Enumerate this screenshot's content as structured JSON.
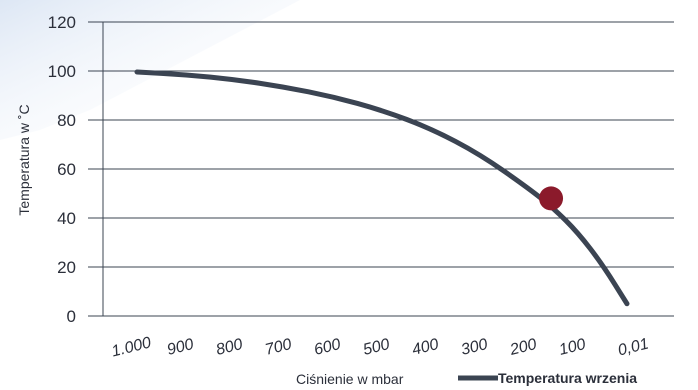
{
  "chart_data": {
    "type": "line",
    "title": "",
    "xlabel": "Ciśnienie w mbar",
    "ylabel": "Temperatura  w  ˚C",
    "ylim": [
      0,
      120
    ],
    "y_ticks": [
      "0",
      "20",
      "40",
      "60",
      "80",
      "100",
      "120"
    ],
    "x_tick_labels": [
      "1.000",
      "900",
      "800",
      "700",
      "600",
      "500",
      "400",
      "300",
      "200",
      "100",
      "0,01"
    ],
    "grid": true,
    "legend_position": "bottom-right",
    "series": [
      {
        "name": "Temperatura wrzenia",
        "color": "#3b4452",
        "x": [
          1000,
          900,
          800,
          700,
          600,
          500,
          400,
          300,
          200,
          150,
          100,
          50,
          0.01
        ],
        "y": [
          99.6,
          98.5,
          96.5,
          93.5,
          89.5,
          84,
          76.5,
          66,
          52,
          44,
          34,
          21,
          5
        ]
      }
    ],
    "highlight_point": {
      "x": 155,
      "y": 48,
      "color": "#8b1a2b"
    }
  }
}
